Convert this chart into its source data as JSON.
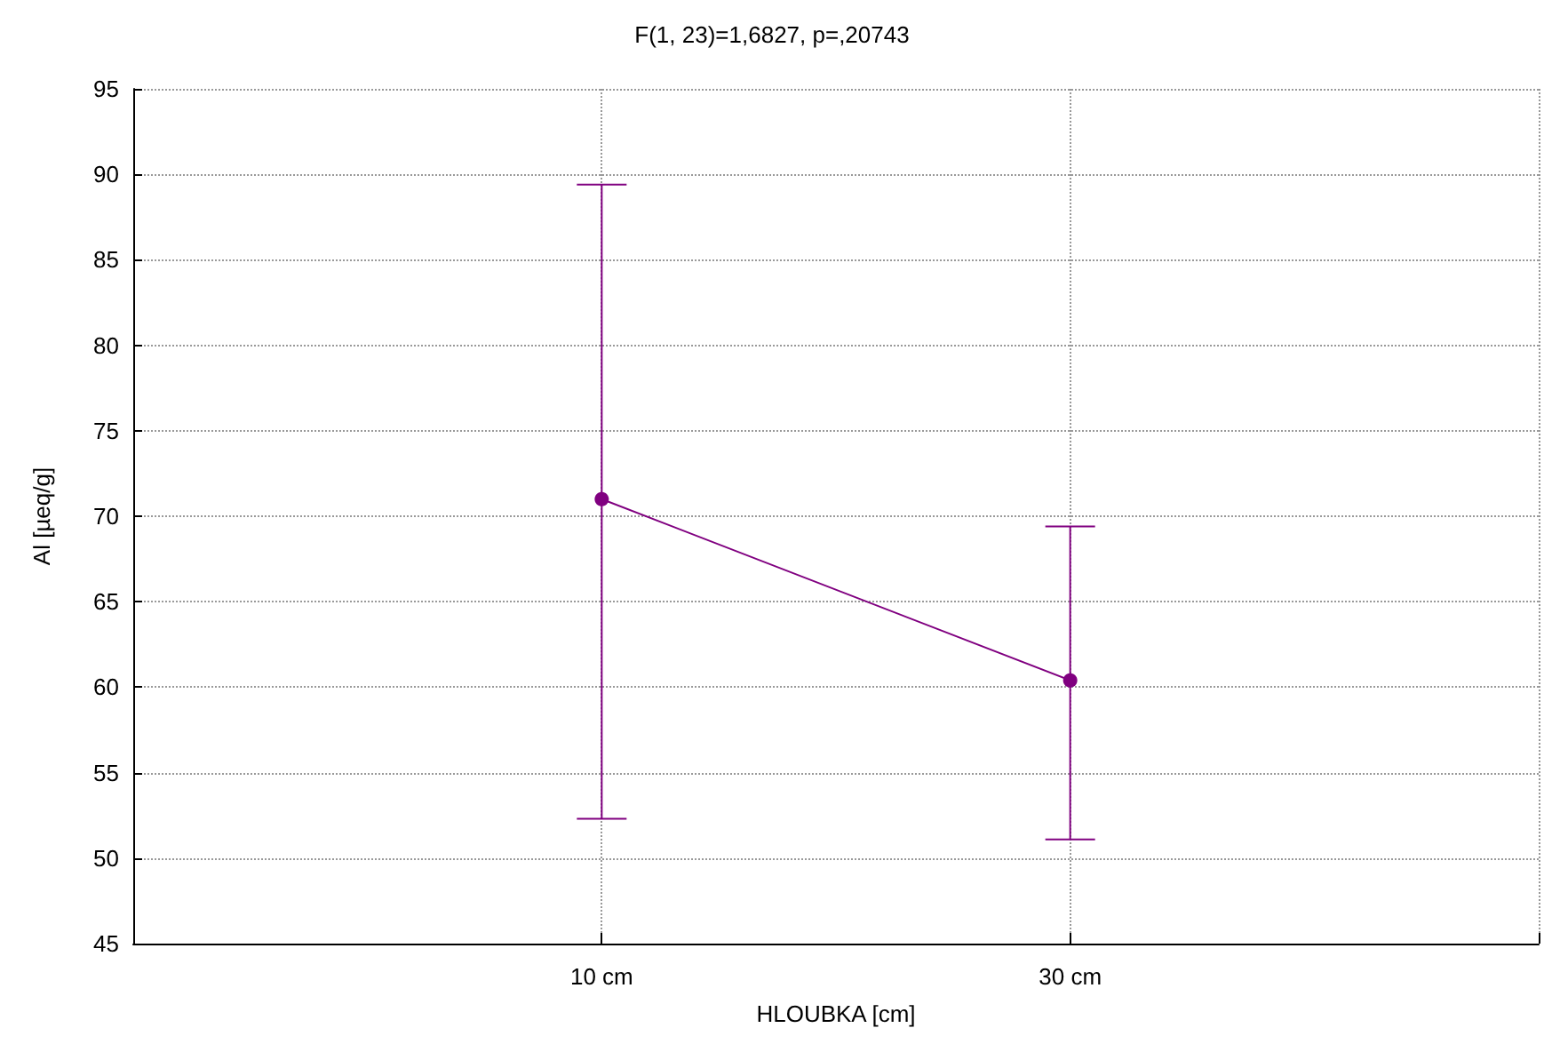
{
  "chart_data": {
    "type": "line",
    "title": "F(1, 23)=1,6827, p=,20743",
    "xlabel": "HLOUBKA [cm]",
    "ylabel": "Al [µeq/g]",
    "categories": [
      "10 cm",
      "30 cm"
    ],
    "series": [
      {
        "color": "#800080",
        "values": [
          71.0,
          60.4
        ],
        "errors": [
          [
            52.3,
            89.4
          ],
          [
            51.1,
            69.4
          ]
        ]
      }
    ],
    "ylim": [
      45,
      95
    ],
    "yticks": [
      45,
      50,
      55,
      60,
      65,
      70,
      75,
      80,
      85,
      90,
      95
    ],
    "grid": true,
    "marker": "circle",
    "line_style": "solid"
  }
}
